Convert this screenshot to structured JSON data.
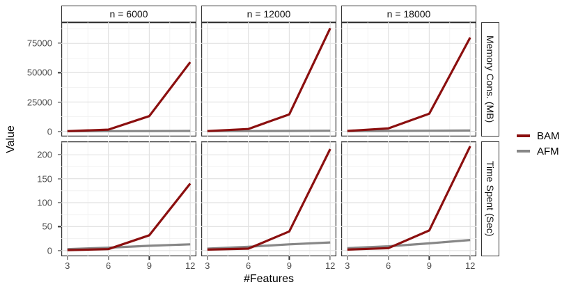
{
  "legend": {
    "entries": [
      {
        "label": "BAM",
        "color": "#8b0f0f"
      },
      {
        "label": "AFM",
        "color": "#878787"
      }
    ]
  },
  "chart_data": {
    "type": "line",
    "title": "",
    "xlabel": "#Features",
    "ylabel": "Value",
    "x": [
      3,
      6,
      9,
      12
    ],
    "x_ticks": [
      3,
      6,
      9,
      12
    ],
    "xlim": [
      2.55,
      12.45
    ],
    "grid": "on",
    "grid_major": "#e2e2e2",
    "grid_minor": "#efefef",
    "legend_position": "right",
    "cols": [
      "n = 6000",
      "n = 12000",
      "n = 18000"
    ],
    "series": [
      {
        "name": "BAM",
        "color": "#8b0f0f"
      },
      {
        "name": "AFM",
        "color": "#878787"
      }
    ],
    "rows": [
      {
        "label": "Memory Cons. (MB)",
        "yticks": [
          0,
          25000,
          50000,
          75000
        ],
        "ylim": [
          -4400,
          93000
        ],
        "panels": [
          {
            "col": "n = 6000",
            "values": {
              "BAM": [
                150,
                1500,
                13000,
                59000
              ],
              "AFM": [
                100,
                150,
                250,
                350
              ]
            }
          },
          {
            "col": "n = 12000",
            "values": {
              "BAM": [
                250,
                2000,
                14500,
                88000
              ],
              "AFM": [
                150,
                250,
                350,
                500
              ]
            }
          },
          {
            "col": "n = 18000",
            "values": {
              "BAM": [
                350,
                2500,
                15000,
                80000
              ],
              "AFM": [
                200,
                350,
                500,
                700
              ]
            }
          }
        ]
      },
      {
        "label": "Time Spent (Sec)",
        "yticks": [
          0,
          50,
          100,
          150,
          200
        ],
        "ylim": [
          -12,
          228
        ],
        "panels": [
          {
            "col": "n = 6000",
            "values": {
              "BAM": [
                1,
                3,
                32,
                140
              ],
              "AFM": [
                3,
                6,
                10,
                13
              ]
            }
          },
          {
            "col": "n = 12000",
            "values": {
              "BAM": [
                2,
                4,
                40,
                212
              ],
              "AFM": [
                4,
                8,
                13,
                17
              ]
            }
          },
          {
            "col": "n = 18000",
            "values": {
              "BAM": [
                2,
                5,
                42,
                218
              ],
              "AFM": [
                5,
                9,
                15,
                22
              ]
            }
          }
        ]
      }
    ]
  }
}
